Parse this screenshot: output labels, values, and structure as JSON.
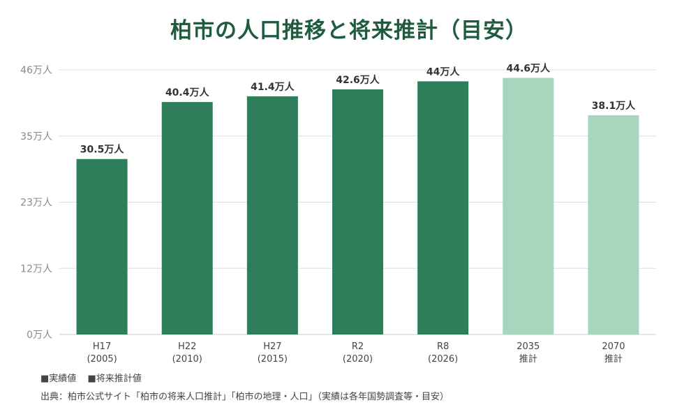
{
  "colors": {
    "title": "#1f5c3f",
    "actual": "#2e7d5b",
    "projection": "#a8d5bd",
    "grid": "#dddddd",
    "axis_text": "#8a8a8a",
    "label_text": "#333333"
  },
  "header": {
    "title": "柏市の人口推移と将来推計（目安）"
  },
  "legend": {
    "actual_label": "■実績値",
    "projection_label": "■将来推計値"
  },
  "footer": {
    "source": "出典：柏市公式サイト「柏市の将来人口推計」「柏市の地理・人口」（実績は各年国勢調査等・目安）"
  },
  "chart_data": {
    "type": "bar",
    "title": "柏市の人口推移と将来推計（目安）",
    "categories": [
      [
        "H17",
        "(2005)"
      ],
      [
        "H22",
        "(2010)"
      ],
      [
        "H27",
        "(2015)"
      ],
      [
        "R2",
        "(2020)"
      ],
      [
        "R8",
        "(2026)"
      ],
      [
        "2035",
        "推計"
      ],
      [
        "2070",
        "推計"
      ]
    ],
    "values": [
      30.5,
      40.4,
      41.4,
      42.6,
      44,
      44.6,
      38.1
    ],
    "value_labels": [
      "30.5万人",
      "40.4万人",
      "41.4万人",
      "42.6万人",
      "44万人",
      "44.6万人",
      "38.1万人"
    ],
    "bar_kind": [
      "actual",
      "actual",
      "actual",
      "actual",
      "actual",
      "projection",
      "projection"
    ],
    "y_ticks": [
      0,
      11.5,
      23,
      34.5,
      46
    ],
    "y_tick_labels": [
      "0万人",
      "12万人",
      "23万人",
      "35万人",
      "46万人"
    ],
    "ylim": [
      0,
      46
    ],
    "grid": true
  }
}
